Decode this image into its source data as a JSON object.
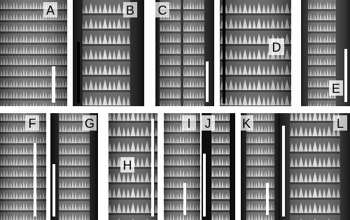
{
  "panels": [
    {
      "label": "A"
    },
    {
      "label": "B"
    },
    {
      "label": "C"
    },
    {
      "label": "D"
    },
    {
      "label": "E"
    },
    {
      "label": "F"
    },
    {
      "label": "G"
    },
    {
      "label": "H"
    },
    {
      "label": "I"
    },
    {
      "label": "J"
    },
    {
      "label": "K"
    },
    {
      "label": "L"
    }
  ]
}
